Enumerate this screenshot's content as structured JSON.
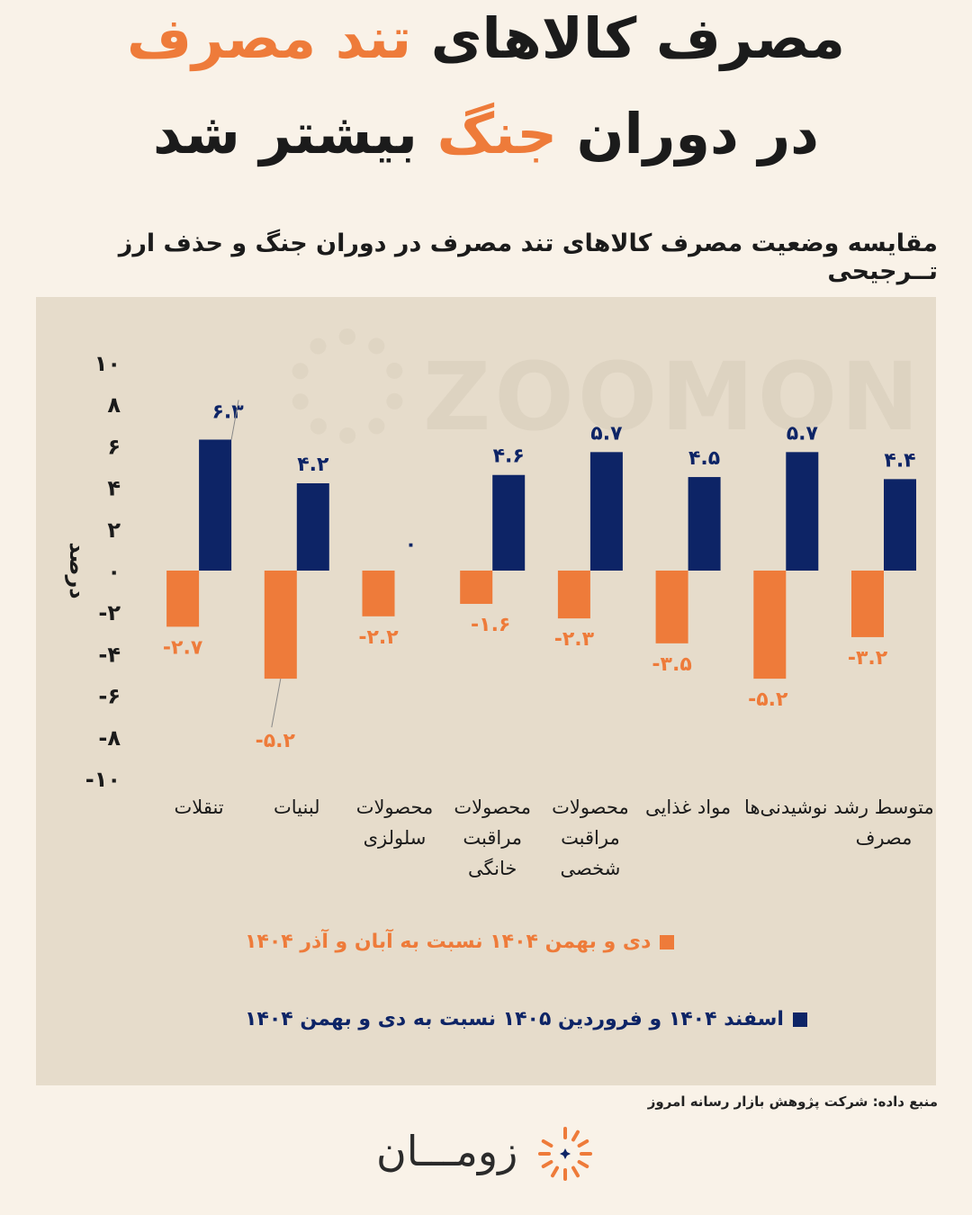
{
  "header": {
    "title_line1_part1": "مصرف کالاهای",
    "title_line1_accent": "تند مصرف",
    "title_line2_part1": "در دوران",
    "title_line2_accent": "جنگ",
    "title_line2_part2": "بیشتر شد"
  },
  "subtitle": "مقایسه وضعیت مصرف کالاهای تند مصرف در دوران جنگ و حذف ارز تــرجیحی",
  "watermark": "ZOOMON",
  "source": "منبع داده: شرکت پژوهش بازار رسانه امروز",
  "brand": {
    "name": "زومـــان",
    "logo_icon": "sun-burst-icon"
  },
  "colors": {
    "orange": "#ee7b3a",
    "navy": "#0d2466",
    "panel": "#e6dccb",
    "background": "#f9f2e8"
  },
  "chart_data": {
    "type": "bar",
    "ylabel": "درصد",
    "ylim": [
      -10,
      10
    ],
    "yticks": [
      10,
      8,
      6,
      4,
      2,
      0,
      -2,
      -4,
      -6,
      -8,
      -10
    ],
    "ytick_labels": [
      "۱۰",
      "۸",
      "۶",
      "۴",
      "۲",
      "۰",
      "-۲",
      "-۴",
      "-۶",
      "-۸",
      "-۱۰"
    ],
    "categories": [
      [
        "تنقلات"
      ],
      [
        "لبنیات"
      ],
      [
        "محصولات",
        "سلولزی"
      ],
      [
        "محصولات",
        "مراقبت",
        "خانگی"
      ],
      [
        "محصولات",
        "مراقبت",
        "شخصی"
      ],
      [
        "مواد غذایی"
      ],
      [
        "نوشیدنی‌ها"
      ],
      [
        "متوسط رشد",
        "مصرف"
      ]
    ],
    "series": [
      {
        "name": "دی و بهمن ۱۴۰۴ نسبت به آبان و آذر ۱۴۰۴",
        "color": "#ee7b3a",
        "values": [
          -2.7,
          -5.2,
          -2.2,
          -1.6,
          -2.3,
          -3.5,
          -5.2,
          -3.2
        ],
        "labels": [
          "-۲.۷",
          "-۵.۲",
          "-۲.۲",
          "-۱.۶",
          "-۲.۳",
          "-۳.۵",
          "-۵.۲",
          "-۳.۲"
        ]
      },
      {
        "name": "اسفند ۱۴۰۴ و فروردین ۱۴۰۵ نسبت به دی و بهمن ۱۴۰۴",
        "color": "#0d2466",
        "values": [
          6.3,
          4.2,
          0,
          4.6,
          5.7,
          4.5,
          5.7,
          4.4
        ],
        "labels": [
          "۶.۳",
          "۴.۲",
          "۰",
          "۴.۶",
          "۵.۷",
          "۴.۵",
          "۵.۷",
          "۴.۴"
        ]
      }
    ],
    "legend_position": "bottom-center",
    "grid": false
  }
}
